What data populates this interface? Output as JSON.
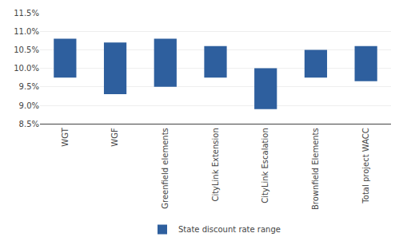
{
  "chart_data": {
    "type": "bar",
    "categories": [
      "WGT",
      "WGF",
      "Greenfield elements",
      "CityLink Extension",
      "CityLink Escalation",
      "Brownfield Elements",
      "Total project WACC"
    ],
    "series": [
      {
        "name": "State discount rate range",
        "color": "#2e5f9e",
        "low": [
          9.75,
          9.3,
          9.5,
          9.75,
          8.9,
          9.75,
          9.65
        ],
        "high": [
          10.8,
          10.7,
          10.8,
          10.6,
          10.0,
          10.5,
          10.6
        ]
      }
    ],
    "ylim": [
      8.5,
      11.5
    ],
    "yticks": [
      {
        "value": 8.5,
        "label": "8.5%"
      },
      {
        "value": 9.0,
        "label": "9.0%"
      },
      {
        "value": 9.5,
        "label": "9.5%"
      },
      {
        "value": 10.0,
        "label": "10.0%"
      },
      {
        "value": 10.5,
        "label": "10.5%"
      },
      {
        "value": 11.0,
        "label": "11.0%"
      },
      {
        "value": 11.5,
        "label": "11.5%"
      }
    ],
    "grid": true,
    "legend": "bottom"
  }
}
